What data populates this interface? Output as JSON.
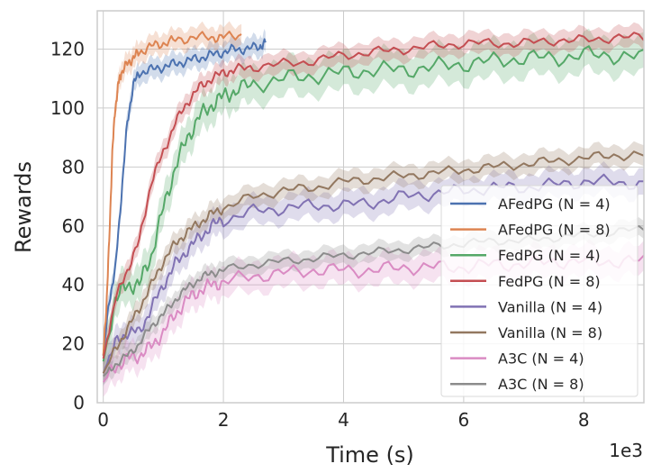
{
  "chart_data": {
    "type": "line",
    "title": "",
    "xlabel": "Time (s)",
    "ylabel": "Rewards",
    "x_offset_label": "1e3",
    "xlim": [
      -0.1,
      9.0
    ],
    "ylim": [
      0,
      133
    ],
    "xticks": [
      0,
      2,
      4,
      6,
      8
    ],
    "yticks": [
      0,
      20,
      40,
      60,
      80,
      100,
      120
    ],
    "grid": true,
    "legend_position": "lower-right",
    "series": [
      {
        "name": "AFedPG (N = 4)",
        "color": "#4c72b0",
        "band": 3.5,
        "x": [
          0,
          0.1,
          0.2,
          0.3,
          0.4,
          0.5,
          0.6,
          0.8,
          1.0,
          1.2,
          1.4,
          1.6,
          1.8,
          2.0,
          2.2,
          2.4,
          2.6,
          2.7
        ],
        "y": [
          16,
          35,
          45,
          70,
          95,
          108,
          112,
          113,
          114,
          115,
          116,
          117,
          118,
          119,
          120,
          120,
          121,
          122
        ]
      },
      {
        "name": "AFedPG (N = 8)",
        "color": "#dd8452",
        "band": 3.5,
        "x": [
          0,
          0.05,
          0.1,
          0.15,
          0.2,
          0.25,
          0.3,
          0.4,
          0.5,
          0.6,
          0.8,
          1.0,
          1.2,
          1.5,
          1.8,
          2.0,
          2.3
        ],
        "y": [
          16,
          32,
          55,
          85,
          100,
          108,
          112,
          115,
          117,
          119,
          121,
          122,
          123,
          124,
          124,
          124,
          125
        ]
      },
      {
        "name": "FedPG (N = 4)",
        "color": "#55a868",
        "band": 6,
        "x": [
          0,
          0.2,
          0.4,
          0.6,
          0.8,
          1.0,
          1.2,
          1.4,
          1.6,
          1.8,
          2.0,
          2.2,
          2.5,
          3.0,
          3.5,
          4.0,
          4.5,
          5.0,
          5.5,
          6.0,
          6.5,
          7.0,
          7.5,
          8.0,
          8.5,
          9.0
        ],
        "y": [
          14,
          35,
          40,
          40,
          50,
          66,
          80,
          90,
          97,
          101,
          104,
          106,
          108,
          110,
          111,
          112,
          113,
          113,
          114,
          115,
          116,
          117,
          117,
          118,
          118,
          117
        ]
      },
      {
        "name": "FedPG (N = 8)",
        "color": "#c44e52",
        "band": 3.5,
        "x": [
          0,
          0.2,
          0.4,
          0.6,
          0.8,
          1.0,
          1.2,
          1.4,
          1.6,
          1.8,
          2.0,
          2.2,
          2.5,
          3.0,
          3.5,
          4.0,
          4.5,
          5.0,
          5.5,
          6.0,
          6.5,
          7.0,
          7.5,
          8.0,
          8.5,
          9.0
        ],
        "y": [
          15,
          35,
          45,
          55,
          75,
          85,
          95,
          102,
          107,
          110,
          112,
          113,
          114,
          115,
          116,
          118,
          119,
          120,
          121,
          122,
          122,
          122,
          123,
          123,
          124,
          124
        ]
      },
      {
        "name": "Vanilla (N = 4)",
        "color": "#8172b3",
        "band": 4.5,
        "x": [
          0,
          0.2,
          0.4,
          0.6,
          0.8,
          1.0,
          1.2,
          1.4,
          1.6,
          1.8,
          2.0,
          2.5,
          3.0,
          3.5,
          4.0,
          4.5,
          5.0,
          5.5,
          6.0,
          6.5,
          7.0,
          7.5,
          8.0,
          8.5,
          9.0
        ],
        "y": [
          10,
          20,
          24,
          24,
          32,
          40,
          47,
          52,
          56,
          60,
          62,
          65,
          66,
          67,
          67,
          68,
          70,
          71,
          72,
          73,
          73,
          74,
          75,
          75,
          74
        ]
      },
      {
        "name": "Vanilla (N = 8)",
        "color": "#937860",
        "band": 3.5,
        "x": [
          0,
          0.2,
          0.4,
          0.6,
          0.8,
          1.0,
          1.2,
          1.4,
          1.6,
          1.8,
          2.0,
          2.5,
          3.0,
          3.5,
          4.0,
          4.5,
          5.0,
          5.5,
          6.0,
          6.5,
          7.0,
          7.5,
          8.0,
          8.5,
          9.0
        ],
        "y": [
          10,
          18,
          25,
          32,
          40,
          48,
          54,
          58,
          61,
          64,
          66,
          70,
          72,
          73,
          75,
          76,
          77,
          78,
          79,
          80,
          81,
          82,
          83,
          84,
          84
        ]
      },
      {
        "name": "A3C (N = 4)",
        "color": "#da8bc3",
        "band": 5,
        "x": [
          0,
          0.2,
          0.4,
          0.6,
          0.8,
          1.0,
          1.2,
          1.4,
          1.6,
          1.8,
          2.0,
          2.5,
          3.0,
          3.5,
          4.0,
          4.5,
          5.0,
          5.5,
          6.0,
          6.5,
          7.0,
          7.5,
          8.0,
          8.5,
          9.0
        ],
        "y": [
          7,
          12,
          15,
          16,
          19,
          24,
          30,
          35,
          38,
          40,
          41,
          43,
          44,
          45,
          45,
          45,
          46,
          46,
          46,
          47,
          47,
          48,
          48,
          48,
          48
        ]
      },
      {
        "name": "A3C (N = 8)",
        "color": "#8c8c8c",
        "band": 3,
        "x": [
          0,
          0.2,
          0.4,
          0.6,
          0.8,
          1.0,
          1.2,
          1.4,
          1.6,
          1.8,
          2.0,
          2.5,
          3.0,
          3.5,
          4.0,
          4.5,
          5.0,
          5.5,
          6.0,
          6.5,
          7.0,
          7.5,
          8.0,
          8.5,
          9.0
        ],
        "y": [
          9,
          13,
          16,
          20,
          26,
          30,
          35,
          39,
          42,
          44,
          45,
          47,
          48,
          49,
          50,
          51,
          52,
          53,
          54,
          55,
          55,
          56,
          57,
          58,
          59
        ]
      }
    ]
  }
}
